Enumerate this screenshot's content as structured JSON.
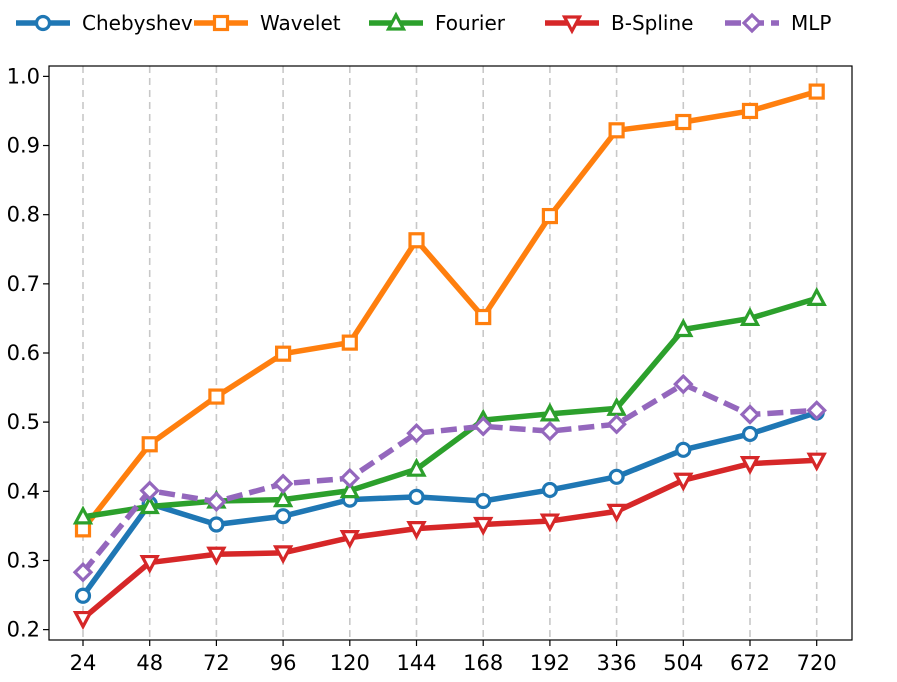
{
  "chart_data": {
    "type": "line",
    "title": "",
    "xlabel": "",
    "ylabel": "",
    "categories": [
      "24",
      "48",
      "72",
      "96",
      "120",
      "144",
      "168",
      "192",
      "336",
      "504",
      "672",
      "720"
    ],
    "ylim": [
      0.185,
      1.015
    ],
    "yticks": [
      "0.2",
      "0.3",
      "0.4",
      "0.5",
      "0.6",
      "0.7",
      "0.8",
      "0.9",
      "1.0"
    ],
    "grid": "vertical dashed",
    "legend_position": "top",
    "series": [
      {
        "name": "Chebyshev",
        "color": "#1f77b4",
        "marker": "circle",
        "dashed": false,
        "values": [
          0.249,
          0.382,
          0.352,
          0.364,
          0.388,
          0.392,
          0.386,
          0.402,
          0.421,
          0.46,
          0.483,
          0.514
        ]
      },
      {
        "name": "Wavelet",
        "color": "#ff7f0e",
        "marker": "square",
        "dashed": false,
        "values": [
          0.345,
          0.468,
          0.537,
          0.599,
          0.615,
          0.763,
          0.652,
          0.798,
          0.922,
          0.934,
          0.95,
          0.978
        ]
      },
      {
        "name": "Fourier",
        "color": "#2ca02c",
        "marker": "triangle-up",
        "dashed": false,
        "values": [
          0.363,
          0.378,
          0.386,
          0.388,
          0.401,
          0.432,
          0.503,
          0.512,
          0.52,
          0.634,
          0.65,
          0.679
        ]
      },
      {
        "name": "B-Spline",
        "color": "#d62728",
        "marker": "triangle-down",
        "dashed": false,
        "values": [
          0.216,
          0.297,
          0.309,
          0.311,
          0.333,
          0.346,
          0.352,
          0.357,
          0.371,
          0.416,
          0.44,
          0.445
        ]
      },
      {
        "name": "MLP",
        "color": "#9467bd",
        "marker": "diamond",
        "dashed": true,
        "values": [
          0.283,
          0.401,
          0.385,
          0.411,
          0.419,
          0.484,
          0.494,
          0.487,
          0.497,
          0.555,
          0.511,
          0.517
        ]
      }
    ]
  }
}
